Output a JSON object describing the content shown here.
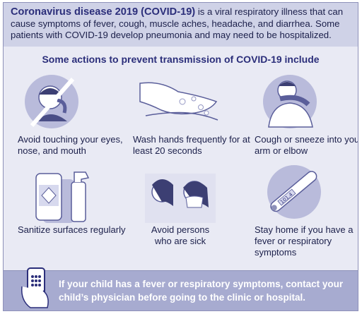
{
  "header": {
    "title": "Coronavirus disease 2019 (COVID-19)",
    "text": " is a viral respiratory illness that can cause symptoms of fever, cough, muscle aches, headache, and diarrhea. Some patients with COVID-19 develop pneumonia and may need to be hospitalized."
  },
  "subtitle": "Some actions to prevent transmission of COVID-19 include",
  "actions": [
    {
      "label": "Avoid touching your eyes, nose, and mouth",
      "icon": "no-face-touching-icon"
    },
    {
      "label": "Wash hands frequently for at least 20 seconds",
      "icon": "hand-washing-icon"
    },
    {
      "label": "Cough or sneeze into your arm or elbow",
      "icon": "cough-into-elbow-icon"
    },
    {
      "label": "Sanitize surfaces regularly",
      "icon": "disinfectant-icon"
    },
    {
      "label": "Avoid persons who are sick",
      "icon": "sick-person-icon"
    },
    {
      "label": "Stay home if you have a fever or respiratory symptoms",
      "icon": "thermometer-icon"
    }
  ],
  "footer": {
    "message": "If your child has a fever or respiratory symptoms, contact your child’s physician before going to the clinic or hospital.",
    "icon": "phone-in-hand-icon"
  },
  "colors": {
    "header_bg": "#cfd2e7",
    "panel_bg": "#e9eaf4",
    "footer_bg": "#a7abd0",
    "title_text": "#2b2e7a"
  }
}
